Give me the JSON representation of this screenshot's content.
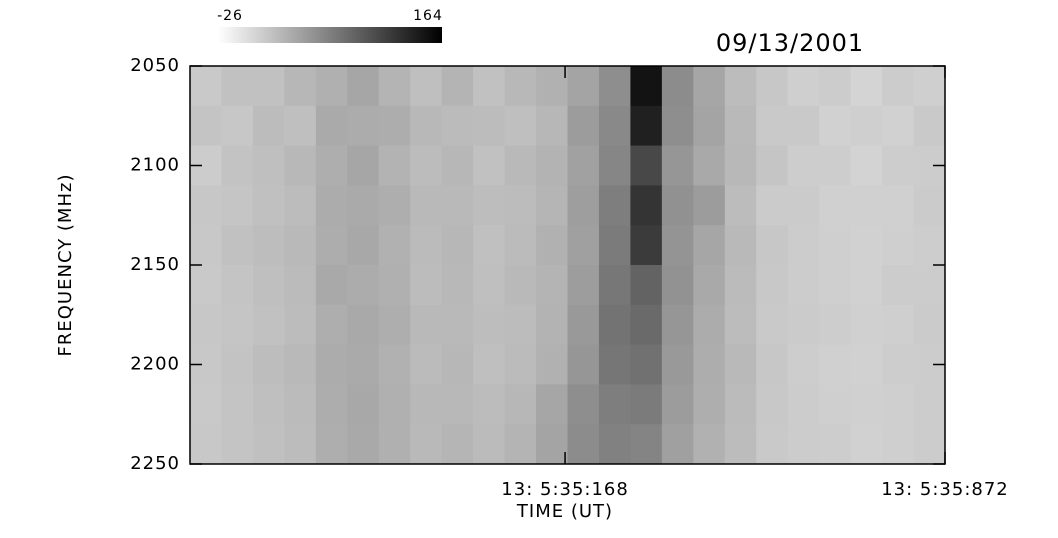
{
  "chart_data": {
    "type": "heatmap",
    "title": "09/13/2001",
    "xlabel": "TIME (UT)",
    "ylabel": "FREQUENCY (MHz)",
    "xlim": [
      334.473,
      335.872
    ],
    "xticks": [
      {
        "value": 335.168,
        "label": "13: 5:35:168"
      },
      {
        "value": 335.872,
        "label": "13: 5:35:872"
      }
    ],
    "ylim": [
      2050,
      2250
    ],
    "y_inverted": true,
    "yticks": [
      2050,
      2100,
      2150,
      2200,
      2250
    ],
    "clim": [
      -26,
      164
    ],
    "colorbar_ticks": [
      -26,
      164
    ],
    "values": [
      [
        14,
        20,
        20,
        28,
        33,
        40,
        30,
        22,
        30,
        20,
        27,
        32,
        42,
        58,
        150,
        60,
        40,
        24,
        16,
        10,
        12,
        6,
        12,
        10
      ],
      [
        18,
        16,
        24,
        22,
        37,
        36,
        35,
        27,
        25,
        24,
        22,
        28,
        48,
        62,
        140,
        58,
        42,
        26,
        14,
        14,
        8,
        10,
        8,
        14
      ],
      [
        12,
        19,
        22,
        27,
        34,
        40,
        31,
        24,
        28,
        20,
        26,
        31,
        44,
        64,
        110,
        52,
        38,
        27,
        17,
        11,
        11,
        7,
        11,
        12
      ],
      [
        16,
        17,
        21,
        24,
        36,
        37,
        34,
        26,
        26,
        23,
        24,
        29,
        46,
        70,
        125,
        56,
        48,
        24,
        13,
        13,
        9,
        9,
        9,
        13
      ],
      [
        15,
        20,
        23,
        26,
        35,
        39,
        32,
        25,
        28,
        21,
        25,
        32,
        45,
        72,
        120,
        54,
        40,
        26,
        16,
        12,
        10,
        8,
        10,
        11
      ],
      [
        14,
        18,
        22,
        25,
        38,
        36,
        33,
        24,
        27,
        22,
        26,
        30,
        47,
        75,
        90,
        55,
        38,
        25,
        15,
        12,
        10,
        8,
        12,
        12
      ],
      [
        16,
        17,
        20,
        24,
        34,
        38,
        34,
        26,
        26,
        23,
        24,
        31,
        50,
        78,
        85,
        52,
        36,
        24,
        14,
        13,
        11,
        9,
        10,
        13
      ],
      [
        15,
        19,
        23,
        26,
        36,
        37,
        32,
        25,
        28,
        22,
        25,
        32,
        52,
        76,
        80,
        50,
        35,
        26,
        16,
        11,
        9,
        8,
        11,
        12
      ],
      [
        14,
        18,
        22,
        25,
        35,
        39,
        33,
        27,
        27,
        24,
        28,
        40,
        58,
        70,
        72,
        48,
        34,
        25,
        15,
        12,
        10,
        9,
        10,
        12
      ],
      [
        15,
        18,
        21,
        24,
        34,
        38,
        33,
        26,
        29,
        25,
        30,
        42,
        60,
        68,
        66,
        45,
        32,
        24,
        14,
        12,
        11,
        8,
        10,
        12
      ]
    ]
  }
}
